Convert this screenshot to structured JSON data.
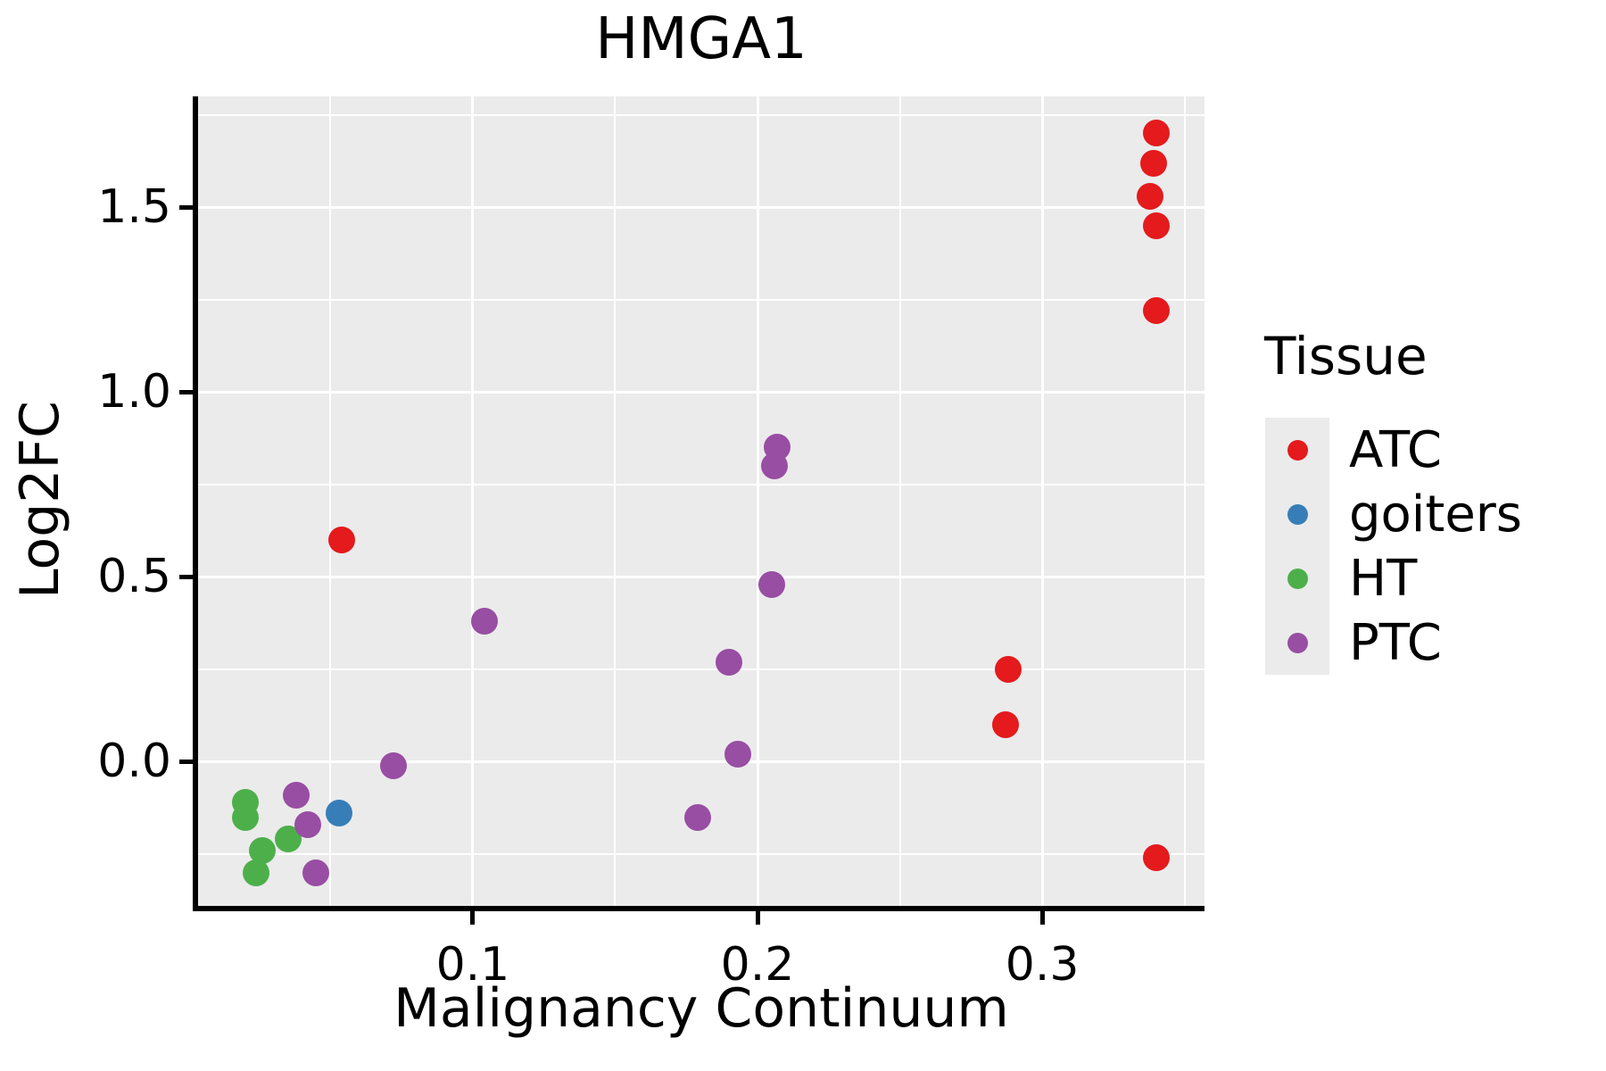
{
  "chart_data": {
    "type": "scatter",
    "title": "HMGA1",
    "xlabel": "Malignancy Continuum",
    "ylabel": "Log2FC",
    "xlim": [
      0.0035,
      0.357
    ],
    "ylim": [
      -0.39,
      1.8
    ],
    "x_ticks": [
      {
        "v": 0.1,
        "label": "0.1"
      },
      {
        "v": 0.2,
        "label": "0.2"
      },
      {
        "v": 0.3,
        "label": "0.3"
      }
    ],
    "x_minor": [
      0.05,
      0.15,
      0.25,
      0.35
    ],
    "y_ticks": [
      {
        "v": 0.0,
        "label": "0.0"
      },
      {
        "v": 0.5,
        "label": "0.5"
      },
      {
        "v": 1.0,
        "label": "1.0"
      },
      {
        "v": 1.5,
        "label": "1.5"
      }
    ],
    "y_minor": [
      -0.25,
      0.25,
      0.75,
      1.25,
      1.75
    ],
    "grid": true,
    "panel_bg": "#EBEBEB",
    "grid_color": "#FFFFFF",
    "legend": {
      "title": "Tissue",
      "position": "right",
      "key_bg": "#EBEBEB"
    },
    "series": [
      {
        "name": "ATC",
        "color": "#E41A1C",
        "points": [
          [
            0.34,
            1.7
          ],
          [
            0.339,
            1.62
          ],
          [
            0.338,
            1.53
          ],
          [
            0.34,
            1.45
          ],
          [
            0.34,
            1.22
          ],
          [
            0.054,
            0.6
          ],
          [
            0.288,
            0.25
          ],
          [
            0.287,
            0.1
          ],
          [
            0.34,
            -0.26
          ]
        ]
      },
      {
        "name": "goiters",
        "color": "#377EB8",
        "points": [
          [
            0.053,
            -0.14
          ]
        ]
      },
      {
        "name": "HT",
        "color": "#4DAF4A",
        "points": [
          [
            0.02,
            -0.11
          ],
          [
            0.02,
            -0.15
          ],
          [
            0.026,
            -0.24
          ],
          [
            0.035,
            -0.21
          ],
          [
            0.024,
            -0.3
          ]
        ]
      },
      {
        "name": "PTC",
        "color": "#984EA3",
        "points": [
          [
            0.207,
            0.85
          ],
          [
            0.206,
            0.8
          ],
          [
            0.205,
            0.48
          ],
          [
            0.104,
            0.38
          ],
          [
            0.19,
            0.27
          ],
          [
            0.193,
            0.02
          ],
          [
            0.072,
            -0.01
          ],
          [
            0.038,
            -0.09
          ],
          [
            0.042,
            -0.17
          ],
          [
            0.179,
            -0.15
          ],
          [
            0.045,
            -0.3
          ]
        ]
      }
    ]
  }
}
